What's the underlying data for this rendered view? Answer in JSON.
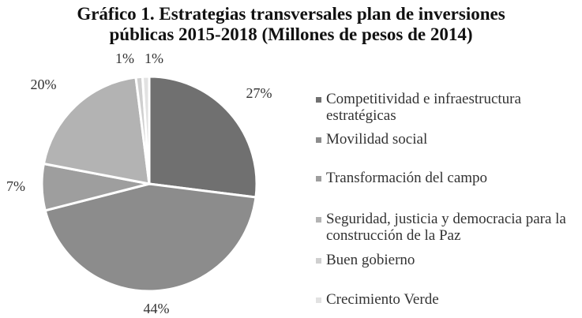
{
  "chart_data": {
    "type": "pie",
    "title_line1": "Gráfico 1. Estrategias  transversales  plan de inversiones",
    "title_line2": "públicas 2015-2018 (Millones de pesos de 2014)",
    "slices": [
      {
        "label": "Competitividad e infraestructura estratégicas",
        "value": 27,
        "display": "27%",
        "color": "#707070"
      },
      {
        "label": "Movilidad social",
        "value": 44,
        "display": "44%",
        "color": "#8c8c8c"
      },
      {
        "label": "Transformación del campo",
        "value": 7,
        "display": "7%",
        "color": "#9e9e9e"
      },
      {
        "label": "Seguridad, justicia y democracia para la construcción de la Paz",
        "value": 20,
        "display": "20%",
        "color": "#b3b3b3"
      },
      {
        "label": "Buen gobierno",
        "value": 1,
        "display": "1%",
        "color": "#cfcfcf"
      },
      {
        "label": "Crecimiento Verde",
        "value": 1,
        "display": "1%",
        "color": "#e2e2e2"
      }
    ],
    "legend_position": "right"
  }
}
